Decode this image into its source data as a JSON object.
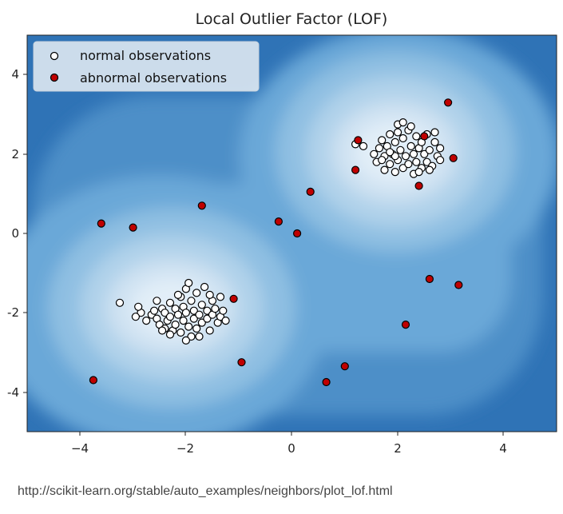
{
  "caption": "http://scikit-learn.org/stable/auto_examples/neighbors/plot_lof.html",
  "chart_data": {
    "type": "scatter",
    "title": "Local Outlier Factor (LOF)",
    "xlim": [
      -5,
      5
    ],
    "ylim": [
      -5,
      5
    ],
    "xticks": [
      -4,
      -2,
      0,
      2,
      4
    ],
    "yticks": [
      -4,
      -2,
      0,
      2,
      4
    ],
    "xtick_labels": [
      "−4",
      "−2",
      "0",
      "2",
      "4"
    ],
    "ytick_labels": [
      "-4",
      "-2",
      "0",
      "2",
      "4"
    ],
    "grid": false,
    "legend_position": "top-left",
    "background": "decision-function contour (blues), lighter around the two clusters",
    "contour_colors": [
      "#2f73b6",
      "#4d8fc8",
      "#6aa8d8",
      "#8fbfe2",
      "#b0d2ea",
      "#cfe2f2",
      "#e2eef8"
    ],
    "series": [
      {
        "name": "normal observations",
        "marker": "circle",
        "fill": "#ffffff",
        "edge": "#000000",
        "points": [
          [
            -2.65,
            -2.05
          ],
          [
            -2.6,
            -1.95
          ],
          [
            -2.55,
            -2.15
          ],
          [
            -2.5,
            -2.3
          ],
          [
            -2.45,
            -1.9
          ],
          [
            -2.4,
            -2.0
          ],
          [
            -2.4,
            -2.4
          ],
          [
            -2.35,
            -2.2
          ],
          [
            -2.3,
            -1.75
          ],
          [
            -2.3,
            -2.1
          ],
          [
            -2.25,
            -2.45
          ],
          [
            -2.2,
            -1.9
          ],
          [
            -2.2,
            -2.3
          ],
          [
            -2.15,
            -2.05
          ],
          [
            -2.1,
            -1.6
          ],
          [
            -2.1,
            -2.5
          ],
          [
            -2.05,
            -1.85
          ],
          [
            -2.05,
            -2.2
          ],
          [
            -2.0,
            -1.4
          ],
          [
            -2.0,
            -2.0
          ],
          [
            -1.95,
            -2.35
          ],
          [
            -1.9,
            -1.7
          ],
          [
            -1.9,
            -2.6
          ],
          [
            -1.85,
            -1.95
          ],
          [
            -1.85,
            -2.15
          ],
          [
            -1.8,
            -1.5
          ],
          [
            -1.8,
            -2.4
          ],
          [
            -1.75,
            -2.05
          ],
          [
            -1.7,
            -1.8
          ],
          [
            -1.7,
            -2.25
          ],
          [
            -1.65,
            -1.35
          ],
          [
            -1.6,
            -1.95
          ],
          [
            -1.6,
            -2.15
          ],
          [
            -1.55,
            -2.45
          ],
          [
            -1.5,
            -1.7
          ],
          [
            -1.5,
            -2.05
          ],
          [
            -1.45,
            -1.9
          ],
          [
            -1.4,
            -2.25
          ],
          [
            -1.35,
            -1.6
          ],
          [
            -1.35,
            -2.1
          ],
          [
            -2.55,
            -1.7
          ],
          [
            -2.3,
            -2.55
          ],
          [
            -1.75,
            -2.6
          ],
          [
            -1.55,
            -1.55
          ],
          [
            -1.3,
            -1.95
          ],
          [
            -1.25,
            -2.2
          ],
          [
            -2.45,
            -2.45
          ],
          [
            -2.15,
            -1.55
          ],
          [
            -2.0,
            -2.7
          ],
          [
            -1.95,
            -1.25
          ],
          [
            -2.75,
            -2.2
          ],
          [
            -2.85,
            -2.0
          ],
          [
            -2.95,
            -2.1
          ],
          [
            -2.9,
            -1.85
          ],
          [
            -3.25,
            -1.75
          ],
          [
            1.35,
            2.2
          ],
          [
            1.55,
            2.0
          ],
          [
            1.6,
            1.8
          ],
          [
            1.65,
            2.15
          ],
          [
            1.7,
            2.35
          ],
          [
            1.75,
            1.95
          ],
          [
            1.75,
            1.6
          ],
          [
            1.8,
            2.2
          ],
          [
            1.85,
            1.75
          ],
          [
            1.85,
            2.5
          ],
          [
            1.9,
            2.0
          ],
          [
            1.95,
            1.55
          ],
          [
            1.95,
            2.3
          ],
          [
            2.0,
            2.75
          ],
          [
            2.0,
            1.85
          ],
          [
            2.05,
            2.1
          ],
          [
            2.1,
            1.65
          ],
          [
            2.1,
            2.4
          ],
          [
            2.15,
            1.95
          ],
          [
            2.2,
            2.6
          ],
          [
            2.2,
            1.75
          ],
          [
            2.25,
            2.2
          ],
          [
            2.3,
            1.5
          ],
          [
            2.3,
            2.0
          ],
          [
            2.35,
            2.45
          ],
          [
            2.35,
            1.8
          ],
          [
            2.4,
            2.15
          ],
          [
            2.45,
            1.65
          ],
          [
            2.45,
            2.3
          ],
          [
            2.5,
            2.0
          ],
          [
            2.55,
            1.8
          ],
          [
            2.55,
            2.5
          ],
          [
            2.6,
            2.1
          ],
          [
            2.65,
            1.7
          ],
          [
            2.7,
            2.3
          ],
          [
            2.75,
            1.95
          ],
          [
            2.8,
            2.15
          ],
          [
            2.1,
            2.8
          ],
          [
            2.25,
            2.7
          ],
          [
            1.95,
            1.95
          ],
          [
            2.6,
            1.6
          ],
          [
            2.7,
            2.55
          ],
          [
            2.8,
            1.85
          ],
          [
            1.7,
            1.85
          ],
          [
            2.4,
            1.55
          ],
          [
            2.0,
            2.55
          ],
          [
            1.85,
            2.05
          ],
          [
            1.2,
            2.25
          ]
        ]
      },
      {
        "name": "abnormal observations",
        "marker": "circle",
        "fill": "#c00000",
        "edge": "#000000",
        "points": [
          [
            -3.75,
            -3.7
          ],
          [
            -3.6,
            0.25
          ],
          [
            -3.0,
            0.15
          ],
          [
            -1.7,
            0.7
          ],
          [
            -1.1,
            -1.65
          ],
          [
            -0.95,
            -3.25
          ],
          [
            -0.25,
            0.3
          ],
          [
            0.1,
            0.0
          ],
          [
            0.35,
            1.05
          ],
          [
            0.65,
            -3.75
          ],
          [
            1.0,
            -3.35
          ],
          [
            1.2,
            1.6
          ],
          [
            1.25,
            2.35
          ],
          [
            2.15,
            -2.3
          ],
          [
            2.4,
            1.2
          ],
          [
            2.5,
            2.45
          ],
          [
            2.6,
            -1.15
          ],
          [
            2.95,
            3.3
          ],
          [
            3.05,
            1.9
          ],
          [
            3.15,
            -1.3
          ]
        ]
      }
    ]
  }
}
